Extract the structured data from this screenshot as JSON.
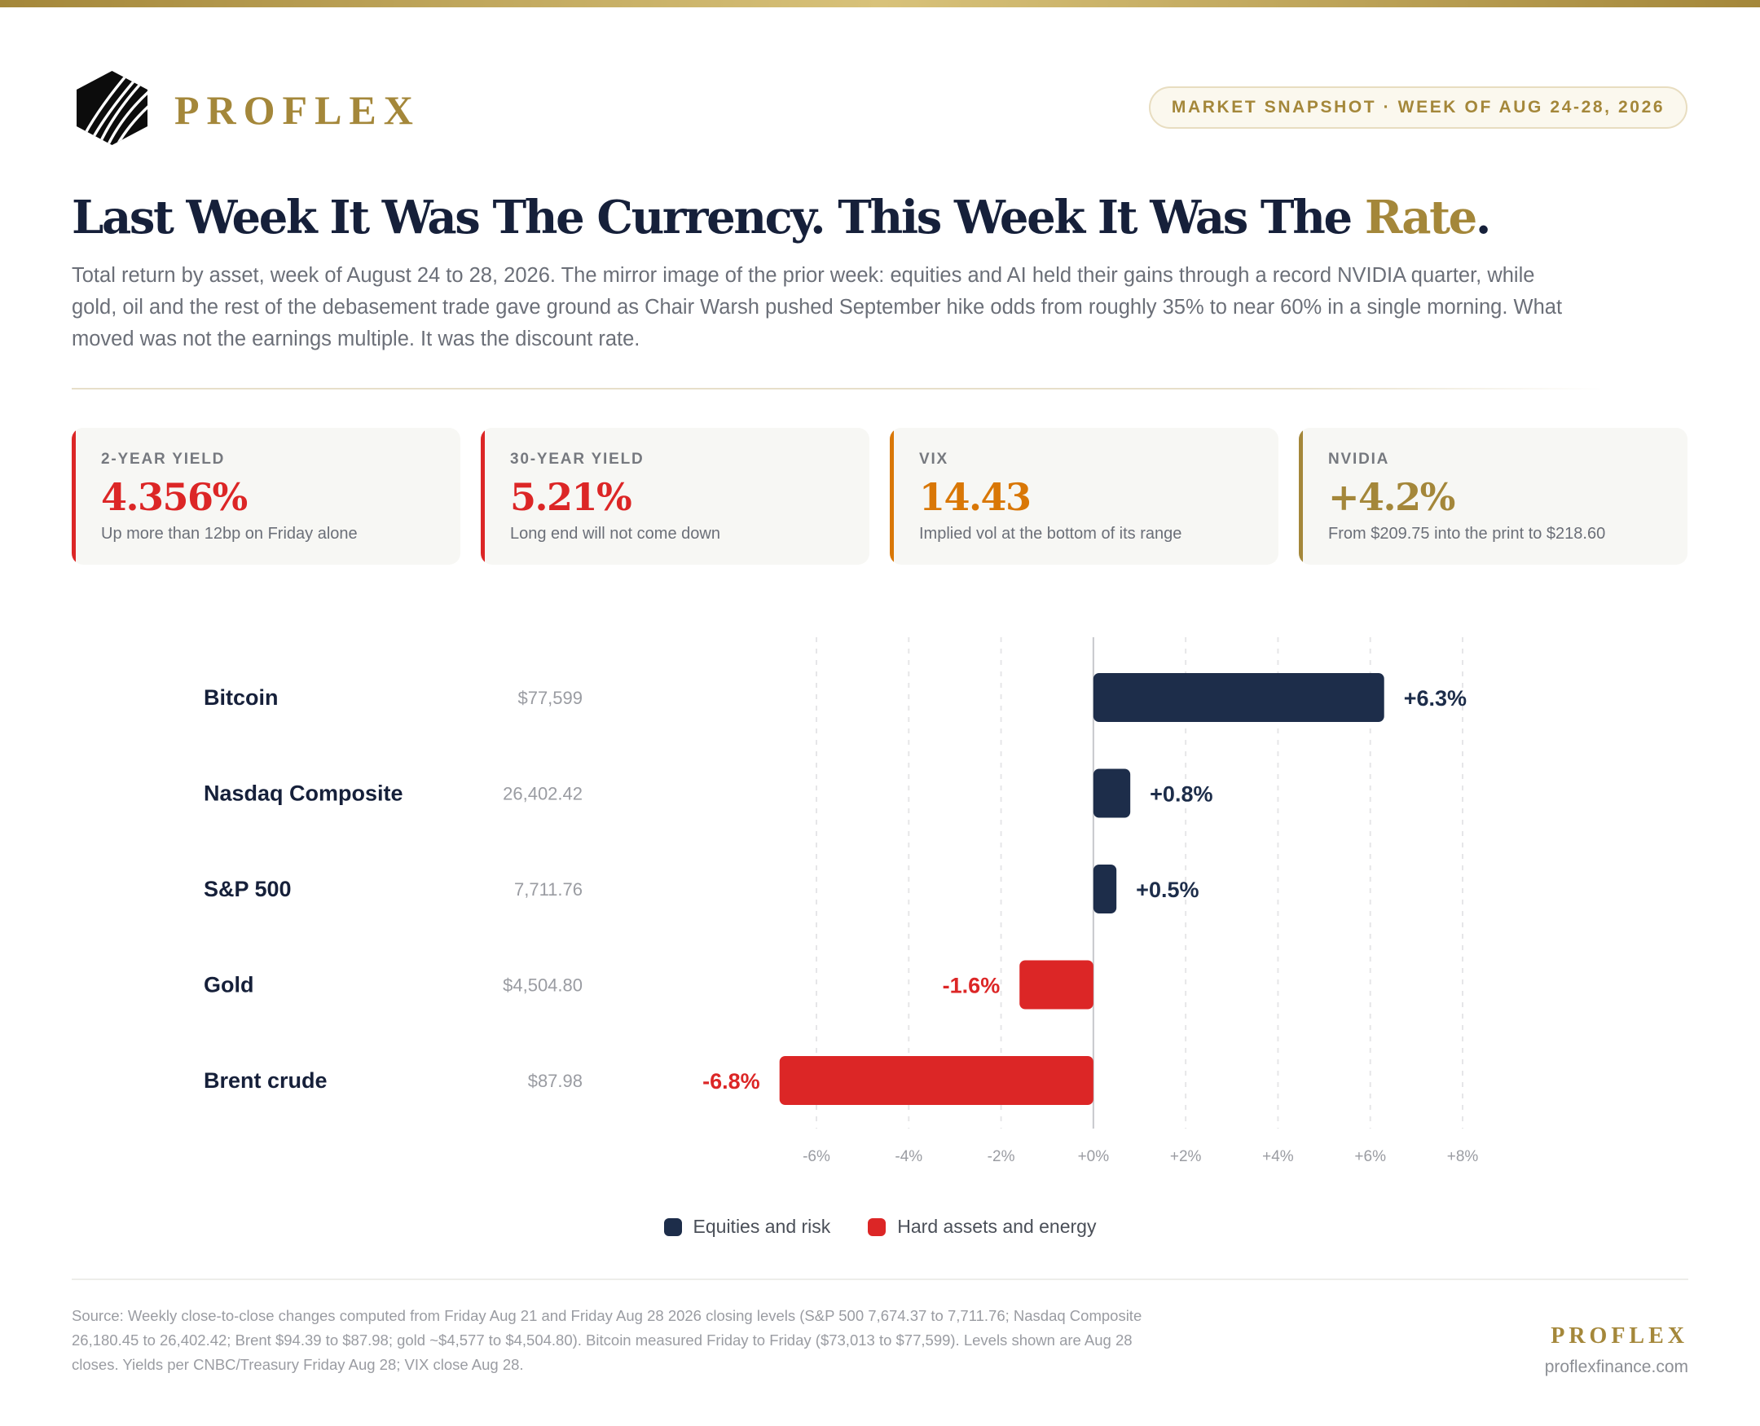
{
  "brand": {
    "name": "PROFLEX",
    "icon": "hexagon-stripes-logo-icon",
    "gold": "#a4873a"
  },
  "badge": "MARKET SNAPSHOT · WEEK OF AUG 24-28, 2026",
  "headline": {
    "main": "Last Week It Was The Currency. This Week It Was The ",
    "accent": "Rate",
    "end": "."
  },
  "subtitle": "Total return by asset, week of August 24 to 28, 2026. The mirror image of the prior week: equities and AI held their gains through a record NVIDIA quarter, while gold, oil and the rest of the debasement trade gave ground as Chair Warsh pushed September hike odds from roughly 35% to near 60% in a single morning. What moved was not the earnings multiple. It was the discount rate.",
  "cards": [
    {
      "label": "2-YEAR YIELD",
      "value": "4.356%",
      "note": "Up more than 12bp on Friday alone",
      "color": "#dc2626"
    },
    {
      "label": "30-YEAR YIELD",
      "value": "5.21%",
      "note": "Long end will not come down",
      "color": "#dc2626"
    },
    {
      "label": "VIX",
      "value": "14.43",
      "note": "Implied vol at the bottom of its range",
      "color": "#d97706"
    },
    {
      "label": "NVIDIA",
      "value": "+4.2%",
      "note": "From $209.75 into the print to $218.60",
      "color": "#a4873a"
    }
  ],
  "chart_data": {
    "type": "bar",
    "orientation": "horizontal",
    "categories": [
      "Bitcoin",
      "Nasdaq Composite",
      "S&P 500",
      "Gold",
      "Brent crude"
    ],
    "levels": [
      "$77,599",
      "26,402.42",
      "7,711.76",
      "$4,504.80",
      "$87.98"
    ],
    "values": [
      6.3,
      0.8,
      0.5,
      -1.6,
      -6.8
    ],
    "value_labels": [
      "+6.3%",
      "+0.8%",
      "+0.5%",
      "-1.6%",
      "-6.8%"
    ],
    "groups": [
      "equities",
      "equities",
      "equities",
      "hard",
      "hard"
    ],
    "xlim": [
      -6,
      8
    ],
    "xticks": [
      -6,
      -4,
      -2,
      0,
      2,
      4,
      6,
      8
    ],
    "xtick_labels": [
      "-6%",
      "-4%",
      "-2%",
      "+0%",
      "+2%",
      "+4%",
      "+6%",
      "+8%"
    ],
    "grid": true,
    "legend": [
      {
        "key": "equities",
        "name": "Equities and risk",
        "color": "#1d2d4a"
      },
      {
        "key": "hard",
        "name": "Hard assets and energy",
        "color": "#dc2626"
      }
    ]
  },
  "footer": {
    "source": "Source: Weekly close-to-close changes computed from Friday Aug 21 and Friday Aug 28 2026 closing levels (S&P 500 7,674.37 to 7,711.76; Nasdaq Composite 26,180.45 to 26,402.42; Brent $94.39 to $87.98; gold ~$4,577 to $4,504.80). Bitcoin measured Friday to Friday ($73,013 to $77,599). Levels shown are Aug 28 closes. Yields per CNBC/Treasury Friday Aug 28; VIX close Aug 28.",
    "brand": "PROFLEX",
    "url": "proflexfinance.com"
  }
}
